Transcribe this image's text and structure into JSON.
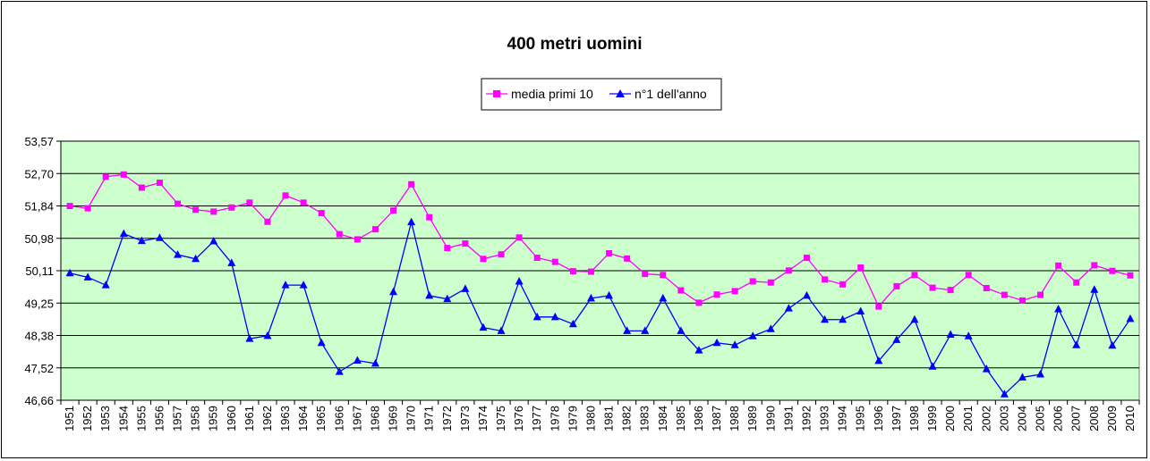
{
  "chart_data": {
    "type": "line",
    "title": "400 metri uomini",
    "xlabel": "",
    "ylabel": "",
    "x": [
      "1951",
      "1952",
      "1953",
      "1954",
      "1955",
      "1956",
      "1957",
      "1958",
      "1959",
      "1960",
      "1961",
      "1962",
      "1963",
      "1964",
      "1965",
      "1966",
      "1967",
      "1968",
      "1969",
      "1970",
      "1971",
      "1972",
      "1973",
      "1974",
      "1975",
      "1976",
      "1977",
      "1978",
      "1979",
      "1980",
      "1981",
      "1982",
      "1983",
      "1984",
      "1985",
      "1986",
      "1987",
      "1988",
      "1989",
      "1990",
      "1991",
      "1992",
      "1993",
      "1994",
      "1995",
      "1996",
      "1997",
      "1998",
      "1999",
      "2000",
      "2001",
      "2002",
      "2003",
      "2004",
      "2005",
      "2006",
      "2007",
      "2008",
      "2009",
      "2010"
    ],
    "y_ticks": [
      "53,57",
      "52,70",
      "51,84",
      "50,98",
      "50,11",
      "49,25",
      "48,38",
      "47,52",
      "46,66"
    ],
    "ylim": [
      46.66,
      53.57
    ],
    "grid": true,
    "legend_position": "top-center",
    "plot_background": "#ccffcc",
    "series": [
      {
        "name": "media primi 10",
        "color": "#ff00ff",
        "marker": "square",
        "values": [
          51.84,
          51.78,
          52.62,
          52.68,
          52.33,
          52.46,
          51.9,
          51.74,
          51.69,
          51.8,
          51.93,
          51.42,
          52.12,
          51.93,
          51.65,
          51.09,
          50.95,
          51.22,
          51.72,
          52.42,
          51.54,
          50.72,
          50.84,
          50.43,
          50.55,
          51.0,
          50.46,
          50.35,
          50.1,
          50.09,
          50.58,
          50.44,
          50.03,
          50.0,
          49.59,
          49.26,
          49.48,
          49.57,
          49.83,
          49.8,
          50.12,
          50.46,
          49.88,
          49.75,
          50.2,
          49.16,
          49.7,
          50.0,
          49.66,
          49.6,
          50.0,
          49.65,
          49.47,
          49.32,
          49.47,
          50.25,
          49.8,
          50.26,
          50.11,
          49.99
        ]
      },
      {
        "name": "n°1  dell'anno",
        "color": "#0000ff",
        "marker": "triangle",
        "values": [
          50.05,
          49.94,
          49.73,
          51.1,
          50.91,
          50.99,
          50.54,
          50.43,
          50.9,
          50.32,
          48.3,
          48.38,
          49.73,
          49.73,
          48.19,
          47.42,
          47.72,
          47.64,
          49.55,
          51.41,
          49.45,
          49.36,
          49.63,
          48.6,
          48.51,
          49.83,
          48.88,
          48.88,
          48.69,
          49.38,
          49.45,
          48.51,
          48.51,
          49.38,
          48.51,
          47.99,
          48.19,
          48.13,
          48.37,
          48.56,
          49.11,
          49.45,
          48.81,
          48.81,
          49.03,
          47.71,
          48.27,
          48.81,
          47.56,
          48.41,
          48.37,
          47.49,
          46.82,
          47.27,
          47.35,
          49.09,
          48.13,
          49.61,
          48.12,
          48.83
        ]
      }
    ]
  }
}
